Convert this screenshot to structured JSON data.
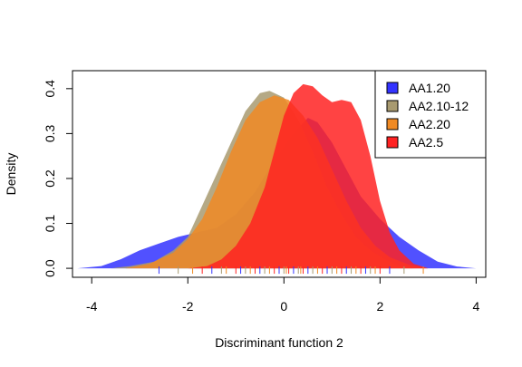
{
  "chart_data": {
    "type": "area",
    "xlabel": "Discriminant function 2",
    "ylabel": "Density",
    "xlim": [
      -4.4,
      4.2
    ],
    "ylim": [
      -0.02,
      0.44
    ],
    "x_ticks": [
      "-4",
      "-2",
      "0",
      "2",
      "4"
    ],
    "y_ticks": [
      "0.0",
      "0.1",
      "0.2",
      "0.3",
      "0.4"
    ],
    "legend_position": "top-right",
    "series": [
      {
        "name": "AA1.20",
        "color": "#3333ff",
        "points": [
          [
            -4.3,
            0.0
          ],
          [
            -3.8,
            0.005
          ],
          [
            -3.4,
            0.02
          ],
          [
            -3.0,
            0.04
          ],
          [
            -2.6,
            0.055
          ],
          [
            -2.2,
            0.07
          ],
          [
            -1.8,
            0.08
          ],
          [
            -1.4,
            0.09
          ],
          [
            -1.0,
            0.12
          ],
          [
            -0.6,
            0.17
          ],
          [
            -0.2,
            0.24
          ],
          [
            0.2,
            0.3
          ],
          [
            0.5,
            0.335
          ],
          [
            0.7,
            0.325
          ],
          [
            1.0,
            0.28
          ],
          [
            1.3,
            0.22
          ],
          [
            1.6,
            0.16
          ],
          [
            2.0,
            0.11
          ],
          [
            2.4,
            0.07
          ],
          [
            2.8,
            0.04
          ],
          [
            3.2,
            0.015
          ],
          [
            3.6,
            0.004
          ],
          [
            4.0,
            0.0
          ]
        ]
      },
      {
        "name": "AA2.10-12",
        "color": "#a89a70",
        "points": [
          [
            -3.6,
            0.0
          ],
          [
            -3.2,
            0.005
          ],
          [
            -2.7,
            0.015
          ],
          [
            -2.3,
            0.04
          ],
          [
            -2.0,
            0.07
          ],
          [
            -1.7,
            0.14
          ],
          [
            -1.4,
            0.21
          ],
          [
            -1.1,
            0.28
          ],
          [
            -0.8,
            0.35
          ],
          [
            -0.5,
            0.39
          ],
          [
            -0.3,
            0.395
          ],
          [
            0.0,
            0.38
          ],
          [
            0.3,
            0.33
          ],
          [
            0.6,
            0.26
          ],
          [
            0.9,
            0.18
          ],
          [
            1.2,
            0.12
          ],
          [
            1.5,
            0.07
          ],
          [
            1.8,
            0.04
          ],
          [
            2.1,
            0.02
          ],
          [
            2.4,
            0.005
          ],
          [
            2.7,
            0.0
          ]
        ]
      },
      {
        "name": "AA2.20",
        "color": "#f08a24",
        "points": [
          [
            -3.3,
            0.0
          ],
          [
            -2.8,
            0.01
          ],
          [
            -2.3,
            0.035
          ],
          [
            -2.0,
            0.065
          ],
          [
            -1.7,
            0.11
          ],
          [
            -1.4,
            0.18
          ],
          [
            -1.1,
            0.26
          ],
          [
            -0.8,
            0.33
          ],
          [
            -0.5,
            0.37
          ],
          [
            -0.2,
            0.385
          ],
          [
            0.1,
            0.375
          ],
          [
            0.4,
            0.34
          ],
          [
            0.7,
            0.29
          ],
          [
            1.0,
            0.22
          ],
          [
            1.3,
            0.15
          ],
          [
            1.6,
            0.09
          ],
          [
            1.9,
            0.05
          ],
          [
            2.2,
            0.025
          ],
          [
            2.6,
            0.008
          ],
          [
            3.0,
            0.0
          ]
        ]
      },
      {
        "name": "AA2.5",
        "color": "#ff2222",
        "points": [
          [
            -2.0,
            0.0
          ],
          [
            -1.6,
            0.005
          ],
          [
            -1.3,
            0.02
          ],
          [
            -1.0,
            0.05
          ],
          [
            -0.7,
            0.1
          ],
          [
            -0.4,
            0.18
          ],
          [
            -0.2,
            0.26
          ],
          [
            0.0,
            0.34
          ],
          [
            0.2,
            0.39
          ],
          [
            0.4,
            0.41
          ],
          [
            0.6,
            0.405
          ],
          [
            0.8,
            0.385
          ],
          [
            1.0,
            0.37
          ],
          [
            1.2,
            0.375
          ],
          [
            1.4,
            0.37
          ],
          [
            1.6,
            0.33
          ],
          [
            1.8,
            0.25
          ],
          [
            2.0,
            0.15
          ],
          [
            2.2,
            0.08
          ],
          [
            2.4,
            0.04
          ],
          [
            2.7,
            0.01
          ],
          [
            3.0,
            0.0
          ]
        ]
      }
    ],
    "rug": [
      -2.6,
      -2.2,
      -1.9,
      -1.7,
      -1.5,
      -1.3,
      -1.2,
      -1.0,
      -0.9,
      -0.8,
      -0.7,
      -0.6,
      -0.5,
      -0.4,
      -0.3,
      -0.2,
      -0.1,
      0.0,
      0.05,
      0.1,
      0.2,
      0.3,
      0.35,
      0.4,
      0.5,
      0.6,
      0.7,
      0.8,
      0.9,
      1.0,
      1.1,
      1.2,
      1.3,
      1.4,
      1.5,
      1.6,
      1.7,
      1.8,
      1.9,
      2.0,
      2.2,
      2.5,
      2.9
    ]
  }
}
